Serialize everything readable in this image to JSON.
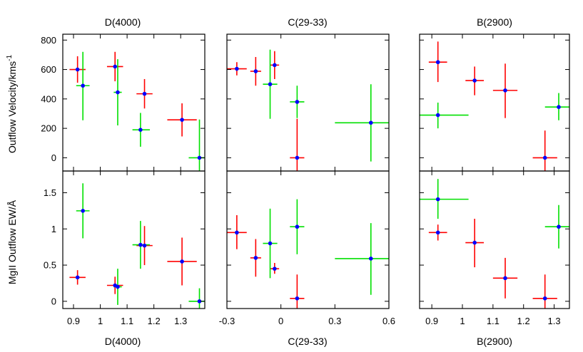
{
  "chart_data": {
    "type": "scatter",
    "description": "2x3 grid of error-bar scatter plots",
    "colors": {
      "red": "#ff0000",
      "green": "#00e000",
      "point": "#0000ff"
    },
    "columns": [
      {
        "title": "D(4000)",
        "xlabel": "D(4000)",
        "xlim": [
          0.86,
          1.39
        ],
        "xticks": [
          0.9,
          1.0,
          1.1,
          1.2,
          1.3
        ],
        "xtick_labels": [
          "0.9",
          "1",
          "1.1",
          "1.2",
          "1.3"
        ]
      },
      {
        "title": "C(29-33)",
        "xlabel": "C(29-33)",
        "xlim": [
          -0.3,
          0.6
        ],
        "xticks": [
          -0.3,
          0.0,
          0.3,
          0.6
        ],
        "xtick_labels": [
          "-0.3",
          "0",
          "0.3",
          "0.6"
        ]
      },
      {
        "title": "B(2900)",
        "xlabel": "B(2900)",
        "xlim": [
          0.86,
          1.35
        ],
        "xticks": [
          0.9,
          1.0,
          1.1,
          1.2,
          1.3
        ],
        "xtick_labels": [
          "0.9",
          "1",
          "1.1",
          "1.2",
          "1.3"
        ]
      }
    ],
    "rows": [
      {
        "ylabel": "Outflow Velocity/kms",
        "ylabel_sup": "-1",
        "ylim": [
          -90,
          840
        ],
        "yticks": [
          0,
          200,
          400,
          600,
          800
        ],
        "ytick_labels": [
          "0",
          "200",
          "400",
          "600",
          "800"
        ]
      },
      {
        "ylabel": "MgII Outflow EW/Å",
        "ylim": [
          -0.1,
          1.8
        ],
        "yticks": [
          0,
          0.5,
          1.0,
          1.5
        ],
        "ytick_labels": [
          "0",
          "0.5",
          "1",
          "1.5"
        ]
      }
    ],
    "panels": [
      {
        "row": 0,
        "col": 0,
        "series": [
          {
            "name": "red",
            "points": [
              {
                "x": 0.915,
                "y": 600,
                "xlo": 0.885,
                "xhi": 0.945,
                "ylo": 510,
                "yhi": 690
              },
              {
                "x": 1.055,
                "y": 620,
                "xlo": 1.025,
                "xhi": 1.085,
                "ylo": 520,
                "yhi": 720
              },
              {
                "x": 1.165,
                "y": 435,
                "xlo": 1.135,
                "xhi": 1.195,
                "ylo": 335,
                "yhi": 535
              },
              {
                "x": 1.305,
                "y": 258,
                "xlo": 1.25,
                "xhi": 1.36,
                "ylo": 145,
                "yhi": 370
              }
            ]
          },
          {
            "name": "green",
            "points": [
              {
                "x": 0.935,
                "y": 490,
                "xlo": 0.91,
                "xhi": 0.96,
                "ylo": 255,
                "yhi": 720
              },
              {
                "x": 1.065,
                "y": 445,
                "xlo": 1.05,
                "xhi": 1.08,
                "ylo": 220,
                "yhi": 670
              },
              {
                "x": 1.15,
                "y": 190,
                "xlo": 1.12,
                "xhi": 1.185,
                "ylo": 75,
                "yhi": 305
              },
              {
                "x": 1.37,
                "y": 0,
                "xlo": 1.33,
                "xhi": 1.39,
                "ylo": -90,
                "yhi": 260
              }
            ]
          }
        ]
      },
      {
        "row": 0,
        "col": 1,
        "series": [
          {
            "name": "red",
            "points": [
              {
                "x": -0.245,
                "y": 605,
                "xlo": -0.3,
                "xhi": -0.19,
                "ylo": 560,
                "yhi": 650
              },
              {
                "x": -0.14,
                "y": 588,
                "xlo": -0.17,
                "xhi": -0.11,
                "ylo": 490,
                "yhi": 685
              },
              {
                "x": -0.035,
                "y": 630,
                "xlo": -0.06,
                "xhi": -0.01,
                "ylo": 535,
                "yhi": 725
              },
              {
                "x": 0.09,
                "y": 0,
                "xlo": 0.05,
                "xhi": 0.13,
                "ylo": -90,
                "yhi": 265
              }
            ]
          },
          {
            "name": "green",
            "points": [
              {
                "x": -0.06,
                "y": 500,
                "xlo": -0.1,
                "xhi": -0.02,
                "ylo": 265,
                "yhi": 735
              },
              {
                "x": 0.09,
                "y": 380,
                "xlo": 0.05,
                "xhi": 0.13,
                "ylo": 270,
                "yhi": 490
              },
              {
                "x": 0.5,
                "y": 238,
                "xlo": 0.3,
                "xhi": 0.6,
                "ylo": -25,
                "yhi": 500
              }
            ]
          }
        ]
      },
      {
        "row": 0,
        "col": 2,
        "series": [
          {
            "name": "red",
            "points": [
              {
                "x": 0.92,
                "y": 650,
                "xlo": 0.89,
                "xhi": 0.95,
                "ylo": 515,
                "yhi": 790
              },
              {
                "x": 1.04,
                "y": 525,
                "xlo": 1.01,
                "xhi": 1.07,
                "ylo": 425,
                "yhi": 620
              },
              {
                "x": 1.14,
                "y": 458,
                "xlo": 1.1,
                "xhi": 1.18,
                "ylo": 270,
                "yhi": 640
              },
              {
                "x": 1.27,
                "y": 0,
                "xlo": 1.23,
                "xhi": 1.31,
                "ylo": -90,
                "yhi": 185
              }
            ]
          },
          {
            "name": "green",
            "points": [
              {
                "x": 0.92,
                "y": 290,
                "xlo": 0.85,
                "xhi": 1.02,
                "ylo": 200,
                "yhi": 375
              },
              {
                "x": 1.315,
                "y": 345,
                "xlo": 1.27,
                "xhi": 1.36,
                "ylo": 255,
                "yhi": 440
              }
            ]
          }
        ]
      },
      {
        "row": 1,
        "col": 0,
        "series": [
          {
            "name": "red",
            "points": [
              {
                "x": 0.915,
                "y": 0.33,
                "xlo": 0.885,
                "xhi": 0.945,
                "ylo": 0.23,
                "yhi": 0.43
              },
              {
                "x": 1.055,
                "y": 0.22,
                "xlo": 1.025,
                "xhi": 1.085,
                "ylo": 0.1,
                "yhi": 0.34
              },
              {
                "x": 1.165,
                "y": 0.77,
                "xlo": 1.135,
                "xhi": 1.195,
                "ylo": 0.5,
                "yhi": 1.04
              },
              {
                "x": 1.305,
                "y": 0.55,
                "xlo": 1.25,
                "xhi": 1.36,
                "ylo": 0.22,
                "yhi": 0.88
              }
            ]
          },
          {
            "name": "green",
            "points": [
              {
                "x": 0.935,
                "y": 1.25,
                "xlo": 0.91,
                "xhi": 0.96,
                "ylo": 0.87,
                "yhi": 1.63
              },
              {
                "x": 1.065,
                "y": 0.2,
                "xlo": 1.05,
                "xhi": 1.08,
                "ylo": -0.05,
                "yhi": 0.45
              },
              {
                "x": 1.15,
                "y": 0.78,
                "xlo": 1.12,
                "xhi": 1.185,
                "ylo": 0.45,
                "yhi": 1.11
              },
              {
                "x": 1.37,
                "y": 0.0,
                "xlo": 1.33,
                "xhi": 1.39,
                "ylo": -0.1,
                "yhi": 0.18
              }
            ]
          }
        ]
      },
      {
        "row": 1,
        "col": 1,
        "series": [
          {
            "name": "red",
            "points": [
              {
                "x": -0.245,
                "y": 0.95,
                "xlo": -0.3,
                "xhi": -0.19,
                "ylo": 0.72,
                "yhi": 1.19
              },
              {
                "x": -0.14,
                "y": 0.6,
                "xlo": -0.17,
                "xhi": -0.11,
                "ylo": 0.34,
                "yhi": 0.86
              },
              {
                "x": -0.035,
                "y": 0.45,
                "xlo": -0.06,
                "xhi": -0.01,
                "ylo": 0.38,
                "yhi": 0.53
              },
              {
                "x": 0.09,
                "y": 0.04,
                "xlo": 0.05,
                "xhi": 0.13,
                "ylo": -0.1,
                "yhi": 0.37
              }
            ]
          },
          {
            "name": "green",
            "points": [
              {
                "x": -0.06,
                "y": 0.8,
                "xlo": -0.1,
                "xhi": -0.02,
                "ylo": 0.32,
                "yhi": 1.28
              },
              {
                "x": 0.09,
                "y": 1.03,
                "xlo": 0.05,
                "xhi": 0.13,
                "ylo": 0.65,
                "yhi": 1.41
              },
              {
                "x": 0.5,
                "y": 0.59,
                "xlo": 0.3,
                "xhi": 0.6,
                "ylo": 0.09,
                "yhi": 1.08
              }
            ]
          }
        ]
      },
      {
        "row": 1,
        "col": 2,
        "series": [
          {
            "name": "red",
            "points": [
              {
                "x": 0.92,
                "y": 0.95,
                "xlo": 0.89,
                "xhi": 0.95,
                "ylo": 0.84,
                "yhi": 1.06
              },
              {
                "x": 1.04,
                "y": 0.81,
                "xlo": 1.01,
                "xhi": 1.07,
                "ylo": 0.47,
                "yhi": 1.14
              },
              {
                "x": 1.14,
                "y": 0.32,
                "xlo": 1.1,
                "xhi": 1.18,
                "ylo": 0.04,
                "yhi": 0.6
              },
              {
                "x": 1.27,
                "y": 0.04,
                "xlo": 1.23,
                "xhi": 1.31,
                "ylo": -0.1,
                "yhi": 0.37
              }
            ]
          },
          {
            "name": "green",
            "points": [
              {
                "x": 0.92,
                "y": 1.41,
                "xlo": 0.85,
                "xhi": 1.02,
                "ylo": 1.14,
                "yhi": 1.69
              },
              {
                "x": 1.315,
                "y": 1.03,
                "xlo": 1.27,
                "xhi": 1.36,
                "ylo": 0.73,
                "yhi": 1.33
              }
            ]
          }
        ]
      }
    ]
  }
}
